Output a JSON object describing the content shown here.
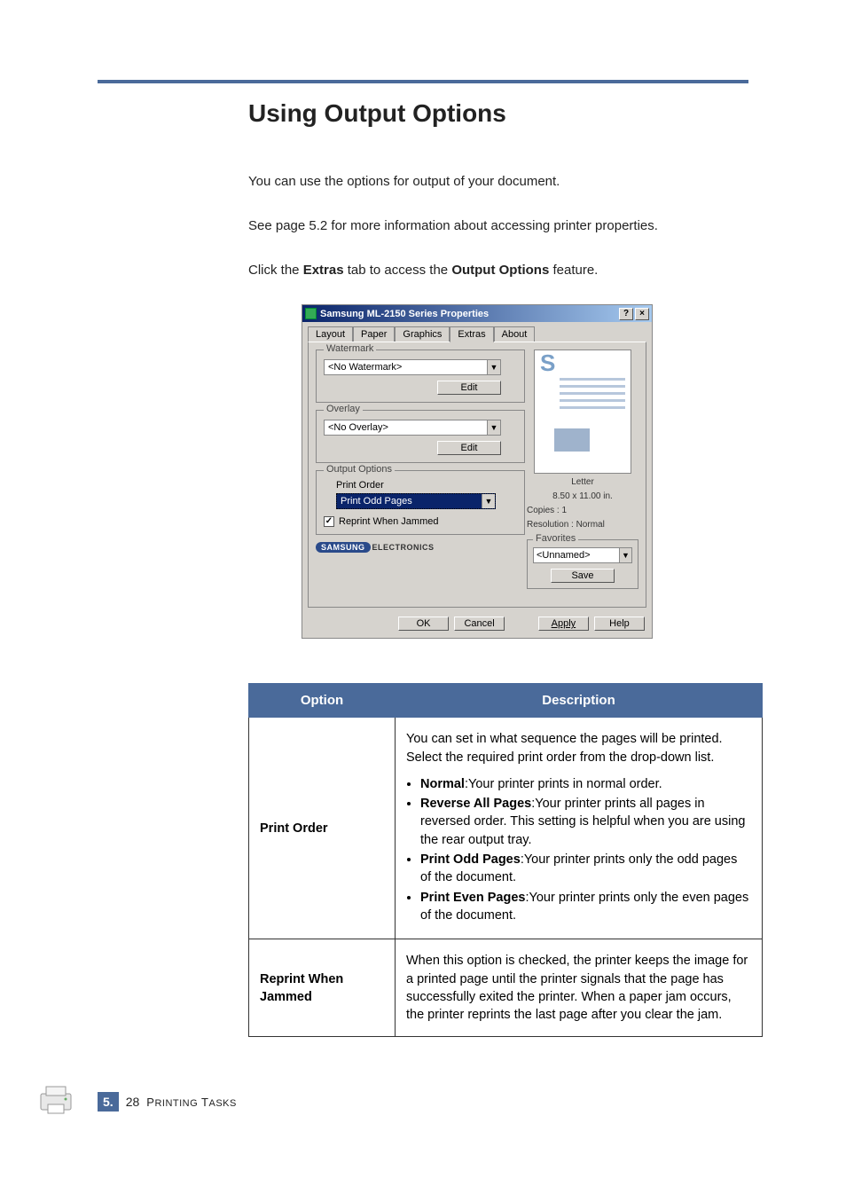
{
  "heading": "Using Output Options",
  "para1": "You can use the options for output of your document.",
  "para2_a": "See page 5.2 for more information about accessing printer properties.",
  "para3_a": "Click the ",
  "para3_b": "Extras",
  "para3_c": " tab to access the ",
  "para3_d": "Output Options",
  "para3_e": " feature.",
  "dialog": {
    "title": "Samsung ML-2150 Series Properties",
    "help_btn": "?",
    "close_btn": "×",
    "tabs": [
      "Layout",
      "Paper",
      "Graphics",
      "Extras",
      "About"
    ],
    "active_tab": 3,
    "watermark": {
      "legend": "Watermark",
      "value": "<No Watermark>",
      "edit": "Edit"
    },
    "overlay": {
      "legend": "Overlay",
      "value": "<No Overlay>",
      "edit": "Edit"
    },
    "output": {
      "legend": "Output Options",
      "order_label": "Print Order",
      "order_value": "Print Odd Pages",
      "reprint_label": "Reprint When Jammed",
      "reprint_checked": true
    },
    "preview": {
      "paper": "Letter",
      "size": "8.50 x 11.00 in.",
      "copies": "Copies : 1",
      "res": "Resolution : Normal"
    },
    "favorites": {
      "legend": "Favorites",
      "value": "<Unnamed>",
      "save": "Save"
    },
    "brand1": "SAMSUNG",
    "brand2": "ELECTRONICS",
    "buttons": {
      "ok": "OK",
      "cancel": "Cancel",
      "apply": "Apply",
      "help": "Help"
    }
  },
  "table": {
    "head_option": "Option",
    "head_desc": "Description",
    "rows": [
      {
        "name": "Print Order",
        "intro": "You can set in what sequence the pages will be printed. Select the required print order from the drop-down list.",
        "items": [
          {
            "b": "Normal",
            "rest": ":Your printer prints in normal order."
          },
          {
            "b": "Reverse All Pages",
            "rest": ":Your printer prints all pages in reversed order. This setting is helpful when you are using the rear output tray."
          },
          {
            "b": "Print Odd Pages",
            "rest": ":Your printer prints only the odd pages of the document."
          },
          {
            "b": "Print Even Pages",
            "rest": ":Your printer prints only the even pages of the document."
          }
        ]
      },
      {
        "name": "Reprint When Jammed",
        "desc": "When this option is checked, the printer keeps the image for a printed page until the printer signals that the page has successfully exited the printer. When a paper jam occurs, the printer reprints the last page after you clear the jam."
      }
    ]
  },
  "footer": {
    "chapter": "5.",
    "page": "28",
    "label": "Printing Tasks"
  },
  "colors": {
    "accent": "#4a6a9a",
    "titlebar_start": "#0a246a",
    "titlebar_end": "#a6caf0",
    "dialog_bg": "#d6d3ce"
  }
}
